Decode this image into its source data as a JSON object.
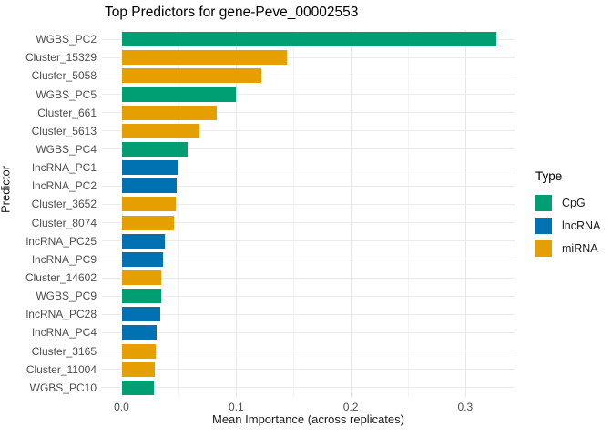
{
  "chart_data": {
    "type": "bar",
    "orientation": "horizontal",
    "title": "Top Predictors for gene-Peve_00002553",
    "xlabel": "Mean Importance (across replicates)",
    "ylabel": "Predictor",
    "xlim": [
      0,
      0.343
    ],
    "x_ticks": [
      0,
      0.1,
      0.2,
      0.3
    ],
    "x_tick_labels": [
      "0.0",
      "0.1",
      "0.2",
      "0.3"
    ],
    "x_minor_ticks": [
      0.05,
      0.15,
      0.25
    ],
    "grid": "vertical major+minor and horizontal per-category, light gray on white",
    "legend": {
      "title": "Type",
      "position": "right",
      "entries": [
        {
          "label": "CpG",
          "color": "#009E73"
        },
        {
          "label": "lncRNA",
          "color": "#0072B2"
        },
        {
          "label": "miRNA",
          "color": "#E69F00"
        }
      ]
    },
    "bars": [
      {
        "label": "WGBS_PC2",
        "type": "CpG",
        "value": 0.327
      },
      {
        "label": "Cluster_15329",
        "type": "miRNA",
        "value": 0.144
      },
      {
        "label": "Cluster_5058",
        "type": "miRNA",
        "value": 0.122
      },
      {
        "label": "WGBS_PC5",
        "type": "CpG",
        "value": 0.1
      },
      {
        "label": "Cluster_661",
        "type": "miRNA",
        "value": 0.083
      },
      {
        "label": "Cluster_5613",
        "type": "miRNA",
        "value": 0.068
      },
      {
        "label": "WGBS_PC4",
        "type": "CpG",
        "value": 0.058
      },
      {
        "label": "lncRNA_PC1",
        "type": "lncRNA",
        "value": 0.05
      },
      {
        "label": "lncRNA_PC2",
        "type": "lncRNA",
        "value": 0.048
      },
      {
        "label": "Cluster_3652",
        "type": "miRNA",
        "value": 0.047
      },
      {
        "label": "Cluster_8074",
        "type": "miRNA",
        "value": 0.046
      },
      {
        "label": "lncRNA_PC25",
        "type": "lncRNA",
        "value": 0.038
      },
      {
        "label": "lncRNA_PC9",
        "type": "lncRNA",
        "value": 0.036
      },
      {
        "label": "Cluster_14602",
        "type": "miRNA",
        "value": 0.0347
      },
      {
        "label": "WGBS_PC9",
        "type": "CpG",
        "value": 0.0348
      },
      {
        "label": "lncRNA_PC28",
        "type": "lncRNA",
        "value": 0.034
      },
      {
        "label": "lncRNA_PC4",
        "type": "lncRNA",
        "value": 0.0305
      },
      {
        "label": "Cluster_3165",
        "type": "miRNA",
        "value": 0.0295
      },
      {
        "label": "Cluster_11004",
        "type": "miRNA",
        "value": 0.0289
      },
      {
        "label": "WGBS_PC10",
        "type": "CpG",
        "value": 0.0284
      }
    ]
  },
  "colors": {
    "CpG": "#009E73",
    "lncRNA": "#0072B2",
    "miRNA": "#E69F00",
    "grid_major": "#e8e8e8",
    "grid_minor": "#f4f4f4",
    "grid_row": "#ebebeb",
    "tick_text": "#4d4d4d",
    "title_text": "#000000"
  }
}
